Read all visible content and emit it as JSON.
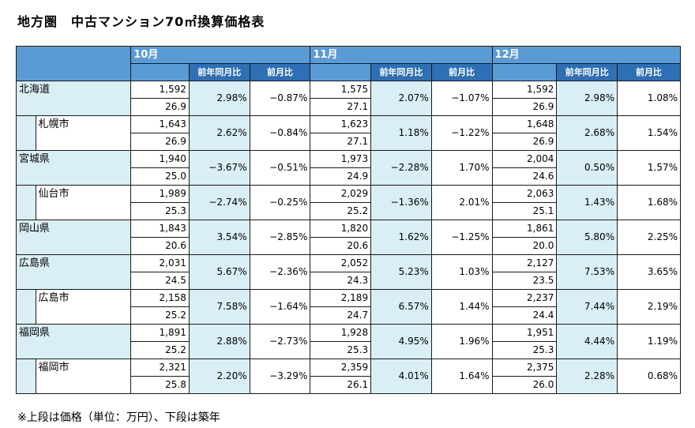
{
  "title": "地方圏　中古マンション70㎡換算価格表",
  "footnote": "※上段は価格（単位：万円）、下段は築年",
  "months": [
    "10月",
    "11月",
    "12月"
  ],
  "col_yoy": "前年同月比",
  "col_mom": "前月比",
  "rows": [
    {
      "name": "北海道",
      "sub": false,
      "m": [
        {
          "price": "1,592",
          "age": "26.9",
          "yoy": "2.98%",
          "mom": "−0.87%"
        },
        {
          "price": "1,575",
          "age": "27.1",
          "yoy": "2.07%",
          "mom": "−1.07%"
        },
        {
          "price": "1,592",
          "age": "26.9",
          "yoy": "2.98%",
          "mom": "1.08%"
        }
      ]
    },
    {
      "name": "札幌市",
      "sub": true,
      "m": [
        {
          "price": "1,643",
          "age": "26.9",
          "yoy": "2.62%",
          "mom": "−0.84%"
        },
        {
          "price": "1,623",
          "age": "27.1",
          "yoy": "1.18%",
          "mom": "−1.22%"
        },
        {
          "price": "1,648",
          "age": "26.9",
          "yoy": "2.68%",
          "mom": "1.54%"
        }
      ]
    },
    {
      "name": "宮城県",
      "sub": false,
      "m": [
        {
          "price": "1,940",
          "age": "25.0",
          "yoy": "−3.67%",
          "mom": "−0.51%"
        },
        {
          "price": "1,973",
          "age": "24.9",
          "yoy": "−2.28%",
          "mom": "1.70%"
        },
        {
          "price": "2,004",
          "age": "24.6",
          "yoy": "0.50%",
          "mom": "1.57%"
        }
      ]
    },
    {
      "name": "仙台市",
      "sub": true,
      "m": [
        {
          "price": "1,989",
          "age": "25.3",
          "yoy": "−2.74%",
          "mom": "−0.25%"
        },
        {
          "price": "2,029",
          "age": "25.2",
          "yoy": "−1.36%",
          "mom": "2.01%"
        },
        {
          "price": "2,063",
          "age": "25.1",
          "yoy": "1.43%",
          "mom": "1.68%"
        }
      ]
    },
    {
      "name": "岡山県",
      "sub": false,
      "m": [
        {
          "price": "1,843",
          "age": "20.6",
          "yoy": "3.54%",
          "mom": "−2.85%"
        },
        {
          "price": "1,820",
          "age": "20.6",
          "yoy": "1.62%",
          "mom": "−1.25%"
        },
        {
          "price": "1,861",
          "age": "20.0",
          "yoy": "5.80%",
          "mom": "2.25%"
        }
      ]
    },
    {
      "name": "広島県",
      "sub": false,
      "m": [
        {
          "price": "2,031",
          "age": "24.5",
          "yoy": "5.67%",
          "mom": "−2.36%"
        },
        {
          "price": "2,052",
          "age": "24.3",
          "yoy": "5.23%",
          "mom": "1.03%"
        },
        {
          "price": "2,127",
          "age": "23.5",
          "yoy": "7.53%",
          "mom": "3.65%"
        }
      ]
    },
    {
      "name": "広島市",
      "sub": true,
      "m": [
        {
          "price": "2,158",
          "age": "25.2",
          "yoy": "7.58%",
          "mom": "−1.64%"
        },
        {
          "price": "2,189",
          "age": "24.7",
          "yoy": "6.57%",
          "mom": "1.44%"
        },
        {
          "price": "2,237",
          "age": "24.4",
          "yoy": "7.44%",
          "mom": "2.19%"
        }
      ]
    },
    {
      "name": "福岡県",
      "sub": false,
      "m": [
        {
          "price": "1,891",
          "age": "25.2",
          "yoy": "2.88%",
          "mom": "−2.73%"
        },
        {
          "price": "1,928",
          "age": "25.3",
          "yoy": "4.95%",
          "mom": "1.96%"
        },
        {
          "price": "1,951",
          "age": "25.3",
          "yoy": "4.44%",
          "mom": "1.19%"
        }
      ]
    },
    {
      "name": "福岡市",
      "sub": true,
      "m": [
        {
          "price": "2,321",
          "age": "25.8",
          "yoy": "2.20%",
          "mom": "−3.29%"
        },
        {
          "price": "2,359",
          "age": "26.1",
          "yoy": "4.01%",
          "mom": "1.64%"
        },
        {
          "price": "2,375",
          "age": "26.0",
          "yoy": "2.28%",
          "mom": "0.68%"
        }
      ]
    }
  ]
}
